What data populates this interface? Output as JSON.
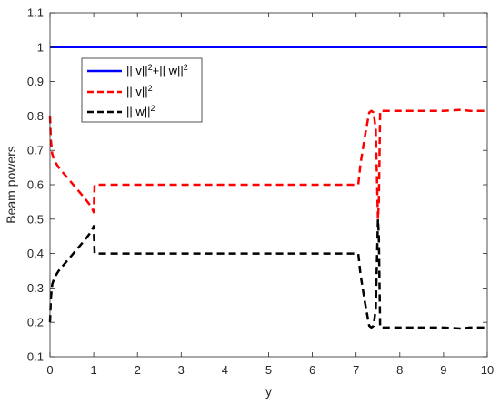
{
  "chart_data": {
    "type": "line",
    "xlabel": "y",
    "ylabel": "Beam powers",
    "xlim": [
      0,
      10
    ],
    "ylim": [
      0.1,
      1.1
    ],
    "xticks": [
      0,
      1,
      2,
      3,
      4,
      5,
      6,
      7,
      8,
      9,
      10
    ],
    "yticks": [
      0.1,
      0.2,
      0.3,
      0.4,
      0.5,
      0.6,
      0.7,
      0.8,
      0.9,
      1,
      1.1
    ],
    "xtick_labels": [
      "0",
      "1",
      "2",
      "3",
      "4",
      "5",
      "6",
      "7",
      "8",
      "9",
      "10"
    ],
    "ytick_labels": [
      "0.1",
      "0.2",
      "0.3",
      "0.4",
      "0.5",
      "0.6",
      "0.7",
      "0.8",
      "0.9",
      "1",
      "1.1"
    ],
    "grid": false,
    "legend_position": "upper-left",
    "series": [
      {
        "key": "total",
        "legend": {
          "v_part": "|| v||",
          "plus": "+",
          "w_part": "|| w||",
          "sup": "2"
        },
        "color": "#0000ff",
        "style": "solid",
        "x": [
          0,
          10
        ],
        "y": [
          1,
          1
        ]
      },
      {
        "key": "v",
        "legend": {
          "v_part": "|| v||",
          "sup": "2"
        },
        "color": "#ff0000",
        "style": "dashed",
        "x": [
          0,
          0.02,
          0.05,
          0.1,
          0.2,
          0.4,
          0.6,
          0.8,
          0.95,
          1.0,
          1.02,
          2,
          3,
          4,
          5,
          6,
          7,
          7.05,
          7.1,
          7.2,
          7.3,
          7.35,
          7.4,
          7.45,
          7.5,
          7.52,
          7.55,
          7.6,
          7.65,
          8,
          9,
          9.4,
          9.6,
          10
        ],
        "y": [
          0.8,
          0.73,
          0.69,
          0.67,
          0.65,
          0.62,
          0.59,
          0.56,
          0.535,
          0.52,
          0.6,
          0.6,
          0.6,
          0.6,
          0.6,
          0.6,
          0.6,
          0.6,
          0.66,
          0.74,
          0.81,
          0.815,
          0.81,
          0.76,
          0.5,
          0.55,
          0.815,
          0.815,
          0.815,
          0.815,
          0.815,
          0.818,
          0.815,
          0.815
        ]
      },
      {
        "key": "w",
        "legend": {
          "w_part": "|| w||",
          "sup": "2"
        },
        "color": "#000000",
        "style": "dashed",
        "x": [
          0,
          0.02,
          0.05,
          0.1,
          0.2,
          0.4,
          0.6,
          0.8,
          0.95,
          1.0,
          1.02,
          2,
          3,
          4,
          5,
          6,
          7,
          7.05,
          7.1,
          7.2,
          7.3,
          7.35,
          7.4,
          7.45,
          7.5,
          7.52,
          7.55,
          7.6,
          7.65,
          8,
          9,
          9.4,
          9.6,
          10
        ],
        "y": [
          0.2,
          0.27,
          0.31,
          0.33,
          0.35,
          0.38,
          0.41,
          0.44,
          0.465,
          0.48,
          0.4,
          0.4,
          0.4,
          0.4,
          0.4,
          0.4,
          0.4,
          0.4,
          0.34,
          0.26,
          0.19,
          0.185,
          0.19,
          0.24,
          0.5,
          0.45,
          0.185,
          0.185,
          0.185,
          0.185,
          0.185,
          0.182,
          0.185,
          0.185
        ]
      }
    ]
  }
}
